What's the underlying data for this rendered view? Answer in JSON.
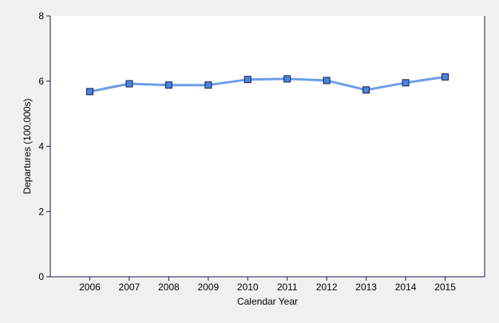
{
  "colors": {
    "background": "#f0f0f0",
    "plot_background": "#ffffff",
    "line": "#6a9fe6",
    "marker_fill": "#4a86d8",
    "marker_stroke": "#1a1a5a",
    "axis": "#1a1a4a"
  },
  "chart_data": {
    "type": "line",
    "title": "",
    "xlabel": "Calendar Year",
    "ylabel": "Departures (100,000s)",
    "categories": [
      "2006",
      "2007",
      "2008",
      "2009",
      "2010",
      "2011",
      "2012",
      "2013",
      "2014",
      "2015"
    ],
    "series": [
      {
        "values": [
          5.68,
          5.92,
          5.88,
          5.88,
          6.05,
          6.07,
          6.02,
          5.73,
          5.95,
          6.13
        ],
        "marker": "square"
      }
    ],
    "ylim": [
      0,
      8
    ],
    "yticks": [
      0,
      2,
      4,
      6,
      8
    ],
    "grid": false,
    "legend": "none"
  }
}
